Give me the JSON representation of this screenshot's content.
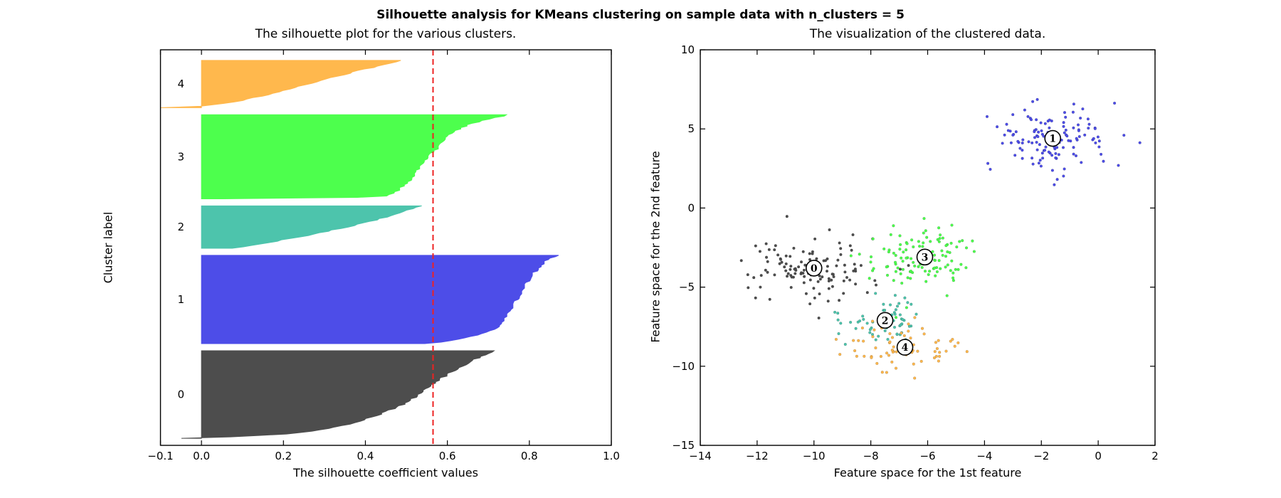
{
  "figure": {
    "suptitle": "Silhouette analysis for KMeans clustering on sample data with n_clusters = 5",
    "background": "#ffffff"
  },
  "colors": {
    "cluster0": "#4d4d4d",
    "cluster1": "#4d4de8",
    "cluster2": "#4dc4ac",
    "cluster3": "#4dff4d",
    "cluster4": "#ffb84d",
    "avg_line": "#ee2222",
    "axis": "#000000",
    "center_marker_fill": "#ffffff",
    "center_marker_edge": "#000000"
  },
  "chart_data": [
    {
      "id": "silhouette-plot",
      "type": "area",
      "title": "The silhouette plot for the various clusters.",
      "xlabel": "The silhouette coefficient values",
      "ylabel": "Cluster label",
      "xlim": [
        -0.1,
        1.0
      ],
      "ylim": [
        0,
        560
      ],
      "xticks": [
        {
          "v": -0.1,
          "label": "−0.1"
        },
        {
          "v": 0.0,
          "label": "0.0"
        },
        {
          "v": 0.2,
          "label": "0.2"
        },
        {
          "v": 0.4,
          "label": "0.4"
        },
        {
          "v": 0.6,
          "label": "0.6"
        },
        {
          "v": 0.8,
          "label": "0.8"
        },
        {
          "v": 1.0,
          "label": "1.0"
        }
      ],
      "yticks": [],
      "avg_silhouette": 0.565,
      "grid": false,
      "clusters": [
        {
          "label": "0",
          "color": "#4d4d4d",
          "y_lower": 10,
          "size": 124,
          "profile": [
            [
              0,
              0.72
            ],
            [
              0.05,
              0.69
            ],
            [
              0.15,
              0.645
            ],
            [
              0.3,
              0.59
            ],
            [
              0.45,
              0.545
            ],
            [
              0.6,
              0.5
            ],
            [
              0.72,
              0.44
            ],
            [
              0.82,
              0.375
            ],
            [
              0.9,
              0.3
            ],
            [
              0.95,
              0.21
            ],
            [
              0.98,
              0.1
            ],
            [
              1,
              -0.05
            ]
          ]
        },
        {
          "label": "1",
          "color": "#4d4de8",
          "y_lower": 144,
          "size": 125,
          "profile": [
            [
              0,
              0.87
            ],
            [
              0.05,
              0.845
            ],
            [
              0.15,
              0.82
            ],
            [
              0.3,
              0.795
            ],
            [
              0.5,
              0.77
            ],
            [
              0.7,
              0.745
            ],
            [
              0.82,
              0.72
            ],
            [
              0.9,
              0.68
            ],
            [
              0.96,
              0.62
            ],
            [
              1,
              0.55
            ]
          ]
        },
        {
          "label": "2",
          "color": "#4dc4ac",
          "y_lower": 279,
          "size": 60,
          "profile": [
            [
              0,
              0.54
            ],
            [
              0.1,
              0.5
            ],
            [
              0.25,
              0.455
            ],
            [
              0.4,
              0.4
            ],
            [
              0.55,
              0.33
            ],
            [
              0.7,
              0.26
            ],
            [
              0.85,
              0.17
            ],
            [
              0.95,
              0.11
            ],
            [
              1,
              0.08
            ]
          ]
        },
        {
          "label": "3",
          "color": "#4dff4d",
          "y_lower": 349,
          "size": 119,
          "profile": [
            [
              0,
              0.75
            ],
            [
              0.05,
              0.7
            ],
            [
              0.12,
              0.65
            ],
            [
              0.22,
              0.61
            ],
            [
              0.35,
              0.585
            ],
            [
              0.5,
              0.555
            ],
            [
              0.65,
              0.53
            ],
            [
              0.8,
              0.505
            ],
            [
              0.92,
              0.475
            ],
            [
              0.98,
              0.445
            ],
            [
              1,
              0.05
            ]
          ]
        },
        {
          "label": "4",
          "color": "#ffb84d",
          "y_lower": 478,
          "size": 67,
          "profile": [
            [
              0,
              0.49
            ],
            [
              0.12,
              0.43
            ],
            [
              0.3,
              0.345
            ],
            [
              0.5,
              0.26
            ],
            [
              0.7,
              0.175
            ],
            [
              0.85,
              0.1
            ],
            [
              0.93,
              0.04
            ],
            [
              0.97,
              0.0
            ],
            [
              1,
              -0.1
            ]
          ]
        }
      ]
    },
    {
      "id": "cluster-scatter-plot",
      "type": "scatter",
      "title": "The visualization of the clustered data.",
      "xlabel": "Feature space for the 1st feature",
      "ylabel": "Feature space for the 2nd feature",
      "xlim": [
        -14,
        2
      ],
      "ylim": [
        -15,
        10
      ],
      "xticks": [
        {
          "v": -14,
          "label": "−14"
        },
        {
          "v": -12,
          "label": "−12"
        },
        {
          "v": -10,
          "label": "−10"
        },
        {
          "v": -8,
          "label": "−8"
        },
        {
          "v": -6,
          "label": "−6"
        },
        {
          "v": -4,
          "label": "−4"
        },
        {
          "v": -2,
          "label": "−2"
        },
        {
          "v": 0,
          "label": "0"
        },
        {
          "v": 2,
          "label": "2"
        }
      ],
      "yticks": [
        {
          "v": 10,
          "label": "10"
        },
        {
          "v": 5,
          "label": "5"
        },
        {
          "v": 0,
          "label": "0"
        },
        {
          "v": -5,
          "label": "−5"
        },
        {
          "v": -10,
          "label": "−10"
        },
        {
          "v": -15,
          "label": "−15"
        }
      ],
      "grid": false,
      "clusters": [
        {
          "label": "0",
          "color": "#4d4d4d",
          "center": [
            -10.0,
            -3.8
          ],
          "std": [
            1.1,
            1.0
          ],
          "n": 124
        },
        {
          "label": "1",
          "color": "#4d4de8",
          "center": [
            -1.6,
            4.4
          ],
          "std": [
            1.0,
            1.05
          ],
          "n": 125
        },
        {
          "label": "2",
          "color": "#4dc4ac",
          "center": [
            -7.5,
            -7.1
          ],
          "std": [
            0.8,
            0.65
          ],
          "n": 60
        },
        {
          "label": "3",
          "color": "#4dff4d",
          "center": [
            -6.1,
            -3.1
          ],
          "std": [
            0.85,
            1.0
          ],
          "n": 119
        },
        {
          "label": "4",
          "color": "#ffb84d",
          "center": [
            -6.8,
            -8.8
          ],
          "std": [
            1.1,
            0.75
          ],
          "n": 67
        }
      ]
    }
  ]
}
